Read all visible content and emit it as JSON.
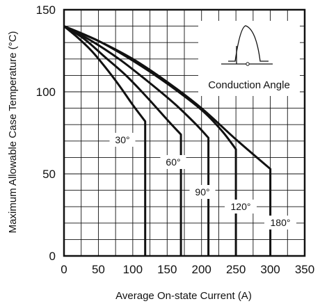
{
  "chart_data": {
    "type": "line",
    "title": "",
    "xlabel": "Average On-state Current (A)",
    "ylabel": "Maximum Allowable Case Temperature (°C)",
    "xlim": [
      0,
      350
    ],
    "ylim": [
      0,
      150
    ],
    "x_ticks": [
      "0",
      "50",
      "100",
      "150",
      "200",
      "250",
      "300",
      "350"
    ],
    "y_ticks": [
      "0",
      "50",
      "100",
      "150"
    ],
    "grid": true,
    "legend": "Conduction Angle",
    "series": [
      {
        "name": "30°",
        "x": [
          0,
          20,
          40,
          60,
          80,
          100,
          118
        ],
        "y": [
          140,
          133,
          125,
          115,
          104,
          92,
          82
        ],
        "cutoff_x": 118
      },
      {
        "name": "60°",
        "x": [
          0,
          30,
          60,
          90,
          120,
          150,
          170
        ],
        "y": [
          140,
          132,
          121,
          110,
          97,
          83,
          74
        ],
        "cutoff_x": 170
      },
      {
        "name": "90°",
        "x": [
          0,
          40,
          80,
          120,
          160,
          190,
          210
        ],
        "y": [
          140,
          131,
          120,
          107,
          93,
          81,
          72
        ],
        "cutoff_x": 210
      },
      {
        "name": "120°",
        "x": [
          0,
          50,
          100,
          150,
          200,
          230,
          250
        ],
        "y": [
          140,
          131,
          119,
          105,
          89,
          76,
          65
        ],
        "cutoff_x": 250
      },
      {
        "name": "180°",
        "x": [
          0,
          50,
          100,
          150,
          200,
          250,
          300
        ],
        "y": [
          140,
          131,
          120,
          106,
          90,
          71,
          53
        ],
        "cutoff_x": 300
      }
    ]
  }
}
